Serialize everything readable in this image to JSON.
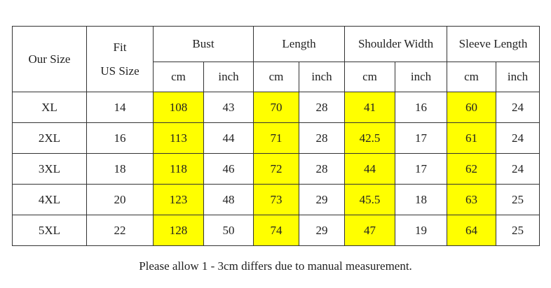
{
  "table": {
    "corner": "Our Size",
    "fit": [
      "Fit",
      "US Size"
    ],
    "groups": [
      "Bust",
      "Length",
      "Shoulder Width",
      "Sleeve Length"
    ],
    "units": [
      "cm",
      "inch",
      "cm",
      "inch",
      "cm",
      "inch",
      "cm",
      "inch"
    ],
    "rows": [
      [
        "XL",
        "14",
        "108",
        "43",
        "70",
        "28",
        "41",
        "16",
        "60",
        "24"
      ],
      [
        "2XL",
        "16",
        "113",
        "44",
        "71",
        "28",
        "42.5",
        "17",
        "61",
        "24"
      ],
      [
        "3XL",
        "18",
        "118",
        "46",
        "72",
        "28",
        "44",
        "17",
        "62",
        "24"
      ],
      [
        "4XL",
        "20",
        "123",
        "48",
        "73",
        "29",
        "45.5",
        "18",
        "63",
        "25"
      ],
      [
        "5XL",
        "22",
        "128",
        "50",
        "74",
        "29",
        "47",
        "19",
        "64",
        "25"
      ]
    ]
  },
  "note": "Please allow 1 - 3cm differs due to manual measurement."
}
